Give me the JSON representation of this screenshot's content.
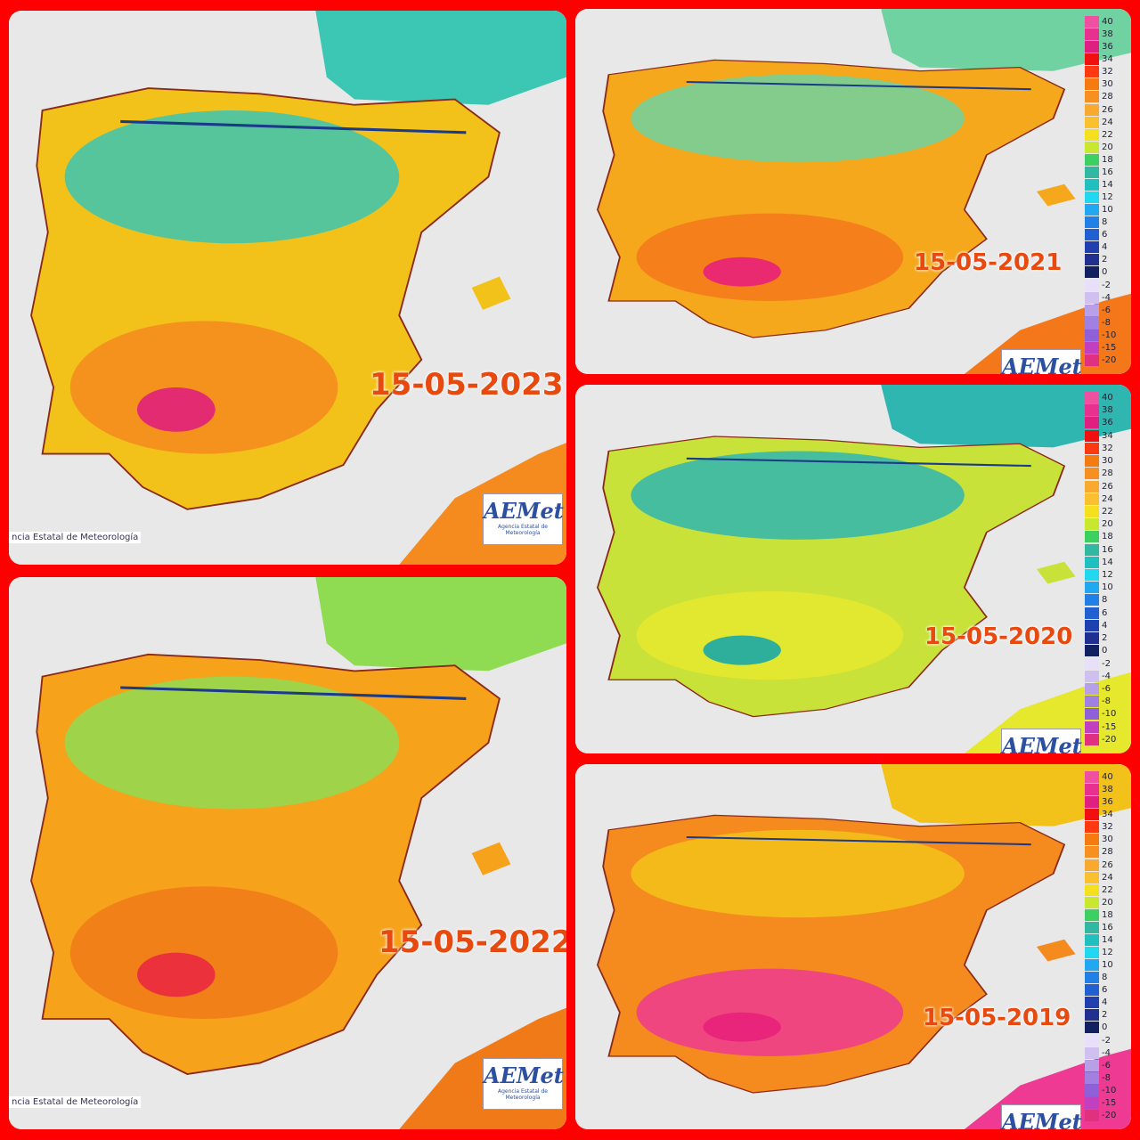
{
  "panels": [
    {
      "date": "15-05-2023",
      "credit": "ncia Estatal de Meteorología",
      "logo": "AEMet",
      "logo_caption": "Agencia Estatal de Meteorología"
    },
    {
      "date": "15-05-2022",
      "credit": "ncia Estatal de Meteorología",
      "logo": "AEMet",
      "logo_caption": "Agencia Estatal de Meteorología"
    },
    {
      "date": "15-05-2021",
      "logo": "AEMet"
    },
    {
      "date": "15-05-2020",
      "logo": "AEMet"
    },
    {
      "date": "15-05-2019",
      "logo": "AEMet"
    }
  ],
  "legend": [
    40,
    38,
    36,
    34,
    32,
    30,
    28,
    26,
    24,
    22,
    20,
    18,
    16,
    14,
    12,
    10,
    8,
    6,
    4,
    2,
    0,
    -2,
    -4,
    -6,
    -8,
    -10,
    -15,
    -20
  ]
}
